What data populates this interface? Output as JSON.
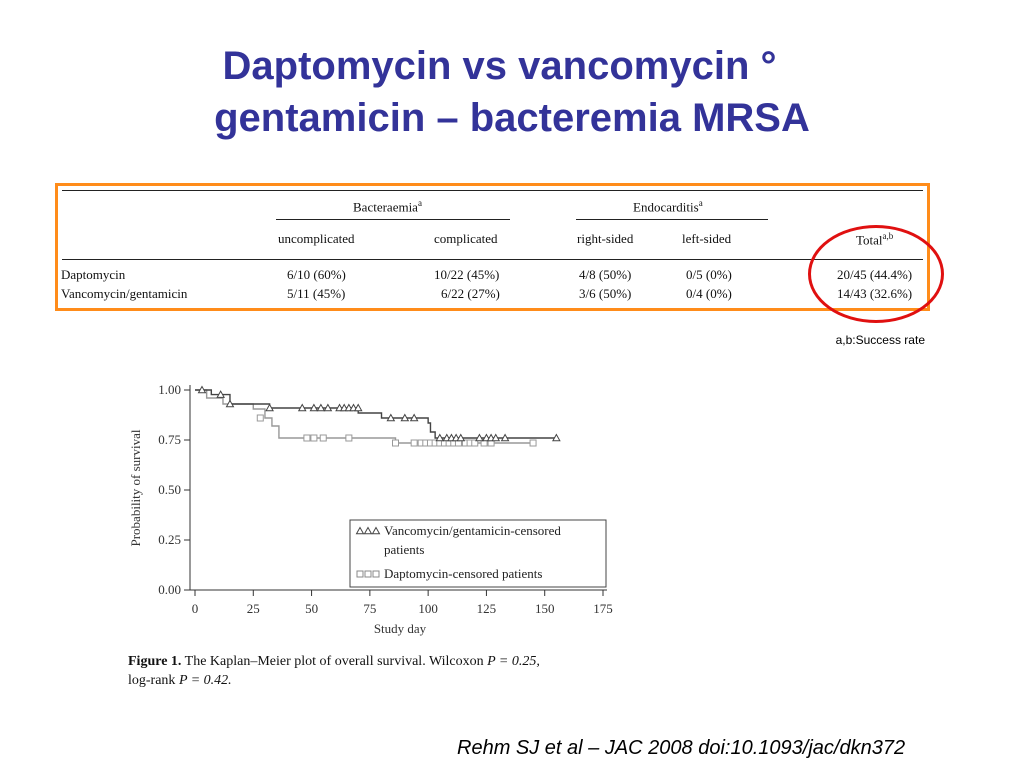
{
  "title": {
    "line1": "Daptomycin vs vancomycin °",
    "line2": "gentamicin – bacteremia MRSA"
  },
  "table": {
    "group_headers": {
      "bacteraemia": "Bacteraemia",
      "bacteraemia_sup": "a",
      "endocarditis": "Endocarditis",
      "endocarditis_sup": "a"
    },
    "columns": {
      "uncomplicated": "uncomplicated",
      "complicated": "complicated",
      "right_sided": "right-sided",
      "left_sided": "left-sided",
      "total": "Total",
      "total_sup": "a,b"
    },
    "rows": [
      {
        "name": "Daptomycin",
        "uncomplicated": "6/10 (60%)",
        "complicated": "10/22 (45%)",
        "right_sided": "4/8 (50%)",
        "left_sided": "0/5 (0%)",
        "total": "20/45 (44.4%)"
      },
      {
        "name": "Vancomycin/gentamicin",
        "uncomplicated": "5/11 (45%)",
        "complicated": "6/22 (27%)",
        "right_sided": "3/6 (50%)",
        "left_sided": "0/4 (0%)",
        "total": "14/43 (32.6%)"
      }
    ]
  },
  "note": "a,b:Success rate",
  "chart_data": {
    "type": "line",
    "ylabel": "Probability of survival",
    "xlabel": "Study day",
    "xlim": [
      0,
      175
    ],
    "ylim": [
      0,
      1
    ],
    "x_ticks": [
      "0",
      "25",
      "50",
      "75",
      "100",
      "125",
      "150",
      "175"
    ],
    "y_ticks": [
      "1.00",
      "0.75",
      "0.50",
      "0.25",
      "0.00"
    ],
    "legend_position": "bottom-right",
    "series": [
      {
        "name": "Vancomycin/gentamicin-censored patients",
        "marker": "triangle",
        "color": "#444444",
        "steps": [
          [
            0,
            1.0
          ],
          [
            7,
            0.977
          ],
          [
            15,
            0.93
          ],
          [
            32,
            0.91
          ],
          [
            70,
            0.885
          ],
          [
            80,
            0.86
          ],
          [
            100,
            0.835
          ],
          [
            101,
            0.79
          ],
          [
            103,
            0.76
          ],
          [
            155,
            0.76
          ]
        ],
        "censored": [
          [
            3,
            1.0
          ],
          [
            11,
            0.977
          ],
          [
            15,
            0.93
          ],
          [
            32,
            0.91
          ],
          [
            46,
            0.91
          ],
          [
            51,
            0.91
          ],
          [
            54,
            0.91
          ],
          [
            57,
            0.91
          ],
          [
            62,
            0.91
          ],
          [
            64,
            0.91
          ],
          [
            66,
            0.91
          ],
          [
            68,
            0.91
          ],
          [
            70,
            0.91
          ],
          [
            84,
            0.86
          ],
          [
            90,
            0.86
          ],
          [
            94,
            0.86
          ],
          [
            105,
            0.76
          ],
          [
            108,
            0.76
          ],
          [
            110,
            0.76
          ],
          [
            112,
            0.76
          ],
          [
            114,
            0.76
          ],
          [
            122,
            0.76
          ],
          [
            125,
            0.76
          ],
          [
            127,
            0.76
          ],
          [
            129,
            0.76
          ],
          [
            133,
            0.76
          ],
          [
            155,
            0.76
          ]
        ]
      },
      {
        "name": "Daptomycin-censored patients",
        "marker": "square",
        "color": "#999999",
        "steps": [
          [
            0,
            1.0
          ],
          [
            5,
            0.96
          ],
          [
            12,
            0.93
          ],
          [
            25,
            0.905
          ],
          [
            30,
            0.86
          ],
          [
            33,
            0.82
          ],
          [
            36,
            0.76
          ],
          [
            86,
            0.735
          ],
          [
            145,
            0.735
          ]
        ],
        "censored": [
          [
            28,
            0.86
          ],
          [
            48,
            0.76
          ],
          [
            51,
            0.76
          ],
          [
            55,
            0.76
          ],
          [
            66,
            0.76
          ],
          [
            86,
            0.735
          ],
          [
            94,
            0.735
          ],
          [
            97,
            0.735
          ],
          [
            99,
            0.735
          ],
          [
            101,
            0.735
          ],
          [
            103,
            0.735
          ],
          [
            105,
            0.735
          ],
          [
            107,
            0.735
          ],
          [
            109,
            0.735
          ],
          [
            111,
            0.735
          ],
          [
            113,
            0.735
          ],
          [
            116,
            0.735
          ],
          [
            118,
            0.735
          ],
          [
            120,
            0.735
          ],
          [
            124,
            0.735
          ],
          [
            127,
            0.735
          ],
          [
            145,
            0.735
          ]
        ]
      }
    ]
  },
  "legend": {
    "vanco_line1": "Vancomycin/gentamicin-censored",
    "vanco_line2": "patients",
    "dapto": "Daptomycin-censored patients"
  },
  "caption": {
    "label": "Figure 1.",
    "text1": "The Kaplan–Meier plot of overall survival. Wilcoxon",
    "p1": "P = 0.25,",
    "text2": "log-rank",
    "p2": "P = 0.42."
  },
  "citation": "Rehm SJ et al – JAC 2008 doi:10.1093/jac/dkn372"
}
